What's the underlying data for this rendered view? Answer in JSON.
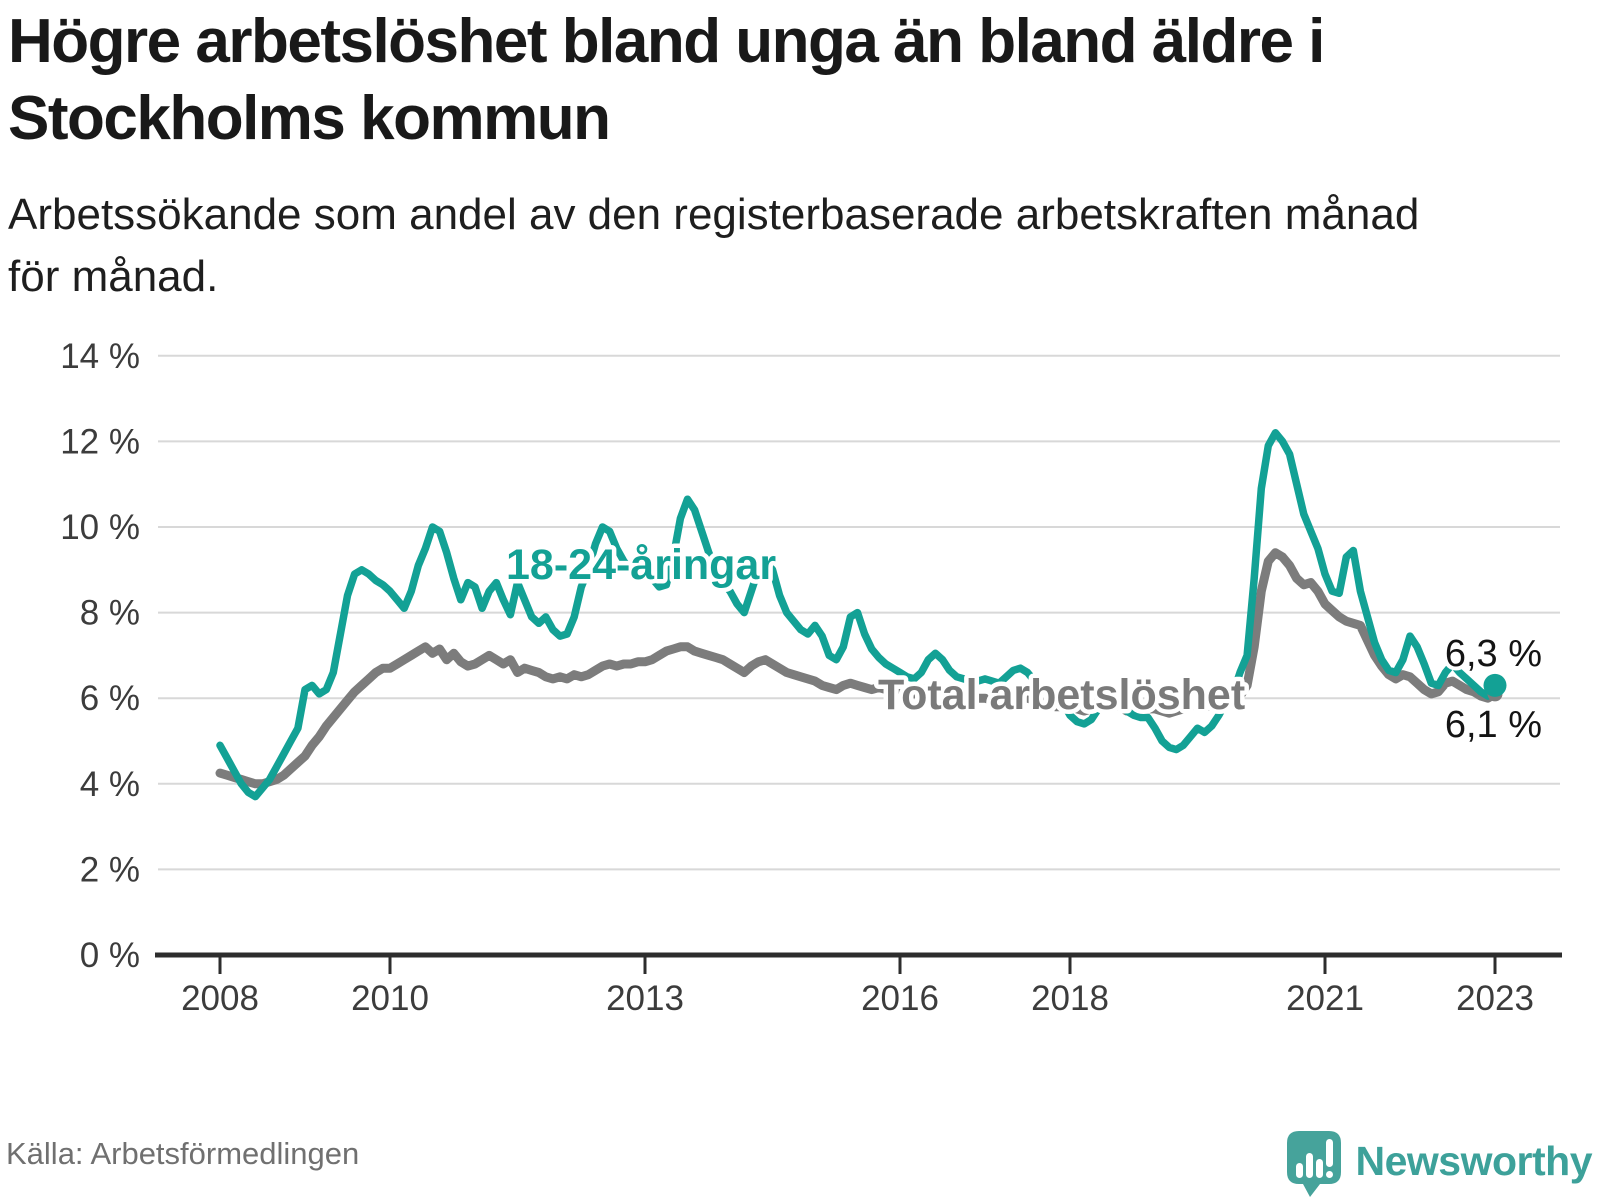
{
  "header": {
    "title_line1": "Högre arbetslöshet bland unga än bland äldre i",
    "title_line2": "Stockholms kommun",
    "subtitle_line1": "Arbetssökande som andel av den registerbaserade arbetskraften månad",
    "subtitle_line2": "för månad."
  },
  "footer": {
    "source": "Källa: Arbetsförmedlingen",
    "brand": "Newsworthy",
    "brand_color": "#3da19a",
    "logo_color": "#46a39b"
  },
  "chart_data": {
    "type": "line",
    "x_unit": "month",
    "x_start": {
      "year": 2008,
      "month": 1
    },
    "x_end": {
      "year": 2023,
      "month": 1
    },
    "ylim": [
      0,
      14
    ],
    "grid": true,
    "legend_position": "inline-labels",
    "x_ticks": [
      {
        "year": 2008,
        "label": "2008"
      },
      {
        "year": 2010,
        "label": "2010"
      },
      {
        "year": 2013,
        "label": "2013"
      },
      {
        "year": 2016,
        "label": "2016"
      },
      {
        "year": 2018,
        "label": "2018"
      },
      {
        "year": 2021,
        "label": "2021"
      },
      {
        "year": 2023,
        "label": "2023"
      }
    ],
    "y_ticks": [
      {
        "value": 0,
        "label": "0 %"
      },
      {
        "value": 2,
        "label": "2 %"
      },
      {
        "value": 4,
        "label": "4 %"
      },
      {
        "value": 6,
        "label": "6 %"
      },
      {
        "value": 8,
        "label": "8 %"
      },
      {
        "value": 10,
        "label": "10 %"
      },
      {
        "value": 12,
        "label": "12 %"
      },
      {
        "value": 14,
        "label": "14 %"
      }
    ],
    "gridline_color": "#d8d8d8",
    "axis_color": "#2d2d2d",
    "series": [
      {
        "key": "youth",
        "name": "18-24-åringar",
        "color": "#13a195",
        "end_label": "6,3 %",
        "end_value": 6.3,
        "values": [
          4.9,
          4.6,
          4.3,
          4.0,
          3.8,
          3.7,
          3.9,
          4.1,
          4.4,
          4.7,
          5.0,
          5.3,
          6.2,
          6.3,
          6.1,
          6.2,
          6.6,
          7.5,
          8.4,
          8.9,
          9.0,
          8.9,
          8.75,
          8.65,
          8.5,
          8.3,
          8.1,
          8.5,
          9.1,
          9.5,
          10.0,
          9.9,
          9.4,
          8.8,
          8.3,
          8.7,
          8.6,
          8.1,
          8.5,
          8.7,
          8.3,
          7.95,
          8.7,
          8.3,
          7.9,
          7.75,
          7.9,
          7.6,
          7.45,
          7.5,
          7.9,
          8.6,
          9.0,
          9.6,
          10.0,
          9.9,
          9.5,
          9.2,
          9.0,
          8.95,
          8.95,
          8.8,
          8.6,
          8.65,
          9.3,
          10.2,
          10.65,
          10.4,
          9.9,
          9.4,
          9.0,
          8.7,
          8.5,
          8.2,
          8.0,
          8.5,
          9.0,
          9.2,
          9.0,
          8.4,
          8.0,
          7.8,
          7.6,
          7.5,
          7.7,
          7.45,
          7.0,
          6.9,
          7.2,
          7.9,
          8.0,
          7.5,
          7.15,
          6.95,
          6.8,
          6.7,
          6.6,
          6.5,
          6.45,
          6.6,
          6.9,
          7.05,
          6.9,
          6.65,
          6.5,
          6.45,
          6.4,
          6.4,
          6.45,
          6.4,
          6.35,
          6.5,
          6.65,
          6.7,
          6.6,
          6.4,
          6.2,
          6.1,
          6.0,
          5.9,
          5.6,
          5.45,
          5.4,
          5.5,
          5.75,
          5.95,
          6.0,
          5.85,
          5.7,
          5.6,
          5.55,
          5.55,
          5.3,
          5.0,
          4.85,
          4.8,
          4.9,
          5.1,
          5.3,
          5.2,
          5.35,
          5.6,
          5.9,
          6.1,
          6.6,
          7.0,
          8.8,
          10.9,
          11.9,
          12.2,
          12.0,
          11.7,
          11.0,
          10.3,
          9.9,
          9.5,
          8.9,
          8.5,
          8.45,
          9.3,
          9.45,
          8.5,
          7.9,
          7.3,
          6.9,
          6.65,
          6.6,
          6.9,
          7.45,
          7.2,
          6.8,
          6.35,
          6.3,
          6.6,
          6.8,
          6.6,
          6.45,
          6.3,
          6.15,
          6.05,
          6.3
        ]
      },
      {
        "key": "total",
        "name": "Total arbetslöshet",
        "color": "#7c7c7c",
        "end_label": "6,1 %",
        "end_value": 6.1,
        "values": [
          4.25,
          4.2,
          4.15,
          4.1,
          4.05,
          4.0,
          4.0,
          4.05,
          4.1,
          4.2,
          4.35,
          4.5,
          4.65,
          4.9,
          5.1,
          5.35,
          5.55,
          5.75,
          5.95,
          6.15,
          6.3,
          6.45,
          6.6,
          6.7,
          6.7,
          6.8,
          6.9,
          7.0,
          7.1,
          7.2,
          7.05,
          7.15,
          6.9,
          7.05,
          6.85,
          6.75,
          6.8,
          6.9,
          7.0,
          6.9,
          6.8,
          6.9,
          6.6,
          6.7,
          6.65,
          6.6,
          6.5,
          6.45,
          6.5,
          6.45,
          6.55,
          6.5,
          6.55,
          6.65,
          6.75,
          6.8,
          6.75,
          6.8,
          6.8,
          6.85,
          6.85,
          6.9,
          7.0,
          7.1,
          7.15,
          7.2,
          7.2,
          7.1,
          7.05,
          7.0,
          6.95,
          6.9,
          6.8,
          6.7,
          6.6,
          6.75,
          6.85,
          6.9,
          6.8,
          6.7,
          6.6,
          6.55,
          6.5,
          6.45,
          6.4,
          6.3,
          6.25,
          6.2,
          6.3,
          6.35,
          6.3,
          6.25,
          6.2,
          6.25,
          6.2,
          6.2,
          6.2,
          6.15,
          6.1,
          6.2,
          6.25,
          6.25,
          6.2,
          6.15,
          6.1,
          6.05,
          6.05,
          6.0,
          6.0,
          5.95,
          5.9,
          5.95,
          6.0,
          6.05,
          6.0,
          5.95,
          5.9,
          5.85,
          5.8,
          5.8,
          5.8,
          5.75,
          5.7,
          5.75,
          5.8,
          5.85,
          5.85,
          5.8,
          5.7,
          5.7,
          5.7,
          5.75,
          5.75,
          5.7,
          5.65,
          5.7,
          5.75,
          5.8,
          5.9,
          5.85,
          5.8,
          5.85,
          5.9,
          6.0,
          6.05,
          6.3,
          7.2,
          8.5,
          9.2,
          9.4,
          9.3,
          9.1,
          8.8,
          8.65,
          8.7,
          8.5,
          8.2,
          8.05,
          7.9,
          7.8,
          7.75,
          7.7,
          7.35,
          7.0,
          6.75,
          6.55,
          6.45,
          6.55,
          6.5,
          6.35,
          6.2,
          6.1,
          6.15,
          6.35,
          6.4,
          6.3,
          6.2,
          6.15,
          6.05,
          6.0,
          6.1
        ]
      }
    ]
  }
}
